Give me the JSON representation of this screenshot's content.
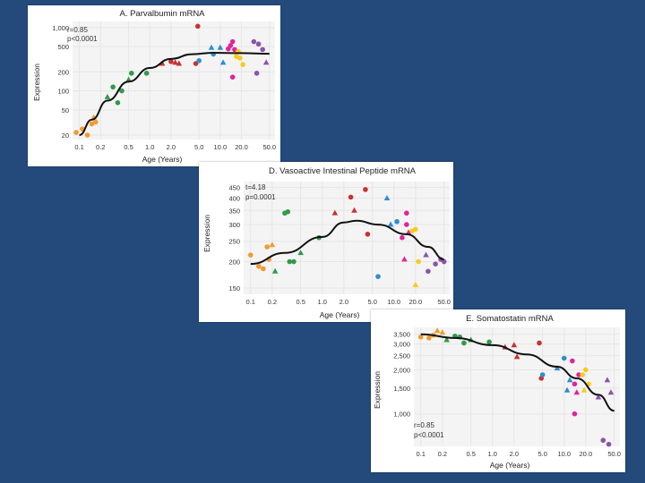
{
  "chart_data": [
    {
      "type": "scatter",
      "id": "a",
      "title": "A. Parvalbumin mRNA",
      "xlabel": "Age (Years)",
      "ylabel": "Expression",
      "stat_r": "r=0.85",
      "stat_p": "p<0.0001",
      "x_scale": "log",
      "y_scale": "log",
      "xlim": [
        0.08,
        60
      ],
      "ylim": [
        17,
        1250
      ],
      "x_ticks": [
        0.1,
        0.2,
        0.5,
        1.0,
        2.0,
        5.0,
        10.0,
        20.0,
        50.0
      ],
      "x_tick_labels": [
        "0.1",
        "0.2",
        "0.5",
        "1.0",
        "2.0",
        "5.0",
        "10.0",
        "20.0",
        "50.0"
      ],
      "y_ticks": [
        20,
        50,
        100,
        200,
        500,
        1000
      ],
      "y_tick_labels": [
        "20",
        "50",
        "100",
        "200",
        "500",
        "1,000"
      ],
      "grid": true,
      "fit_curve": [
        [
          0.1,
          20
        ],
        [
          0.15,
          35
        ],
        [
          0.25,
          70
        ],
        [
          0.5,
          140
        ],
        [
          1.0,
          230
        ],
        [
          2.0,
          320
        ],
        [
          4.0,
          380
        ],
        [
          8.0,
          400
        ],
        [
          20.0,
          395
        ],
        [
          50.0,
          385
        ]
      ],
      "points": [
        {
          "x": 0.09,
          "y": 22,
          "g": "orange",
          "m": "circle"
        },
        {
          "x": 0.11,
          "y": 25,
          "g": "orange",
          "m": "circle"
        },
        {
          "x": 0.13,
          "y": 20,
          "g": "orange",
          "m": "circle"
        },
        {
          "x": 0.15,
          "y": 30,
          "g": "orange",
          "m": "circle"
        },
        {
          "x": 0.16,
          "y": 38,
          "g": "orange",
          "m": "triangle"
        },
        {
          "x": 0.17,
          "y": 32,
          "g": "orange",
          "m": "circle"
        },
        {
          "x": 0.25,
          "y": 80,
          "g": "green",
          "m": "triangle"
        },
        {
          "x": 0.3,
          "y": 115,
          "g": "green",
          "m": "circle"
        },
        {
          "x": 0.35,
          "y": 65,
          "g": "green",
          "m": "circle"
        },
        {
          "x": 0.4,
          "y": 100,
          "g": "green",
          "m": "circle"
        },
        {
          "x": 0.5,
          "y": 150,
          "g": "green",
          "m": "triangle"
        },
        {
          "x": 0.55,
          "y": 190,
          "g": "green",
          "m": "circle"
        },
        {
          "x": 0.9,
          "y": 190,
          "g": "green",
          "m": "circle"
        },
        {
          "x": 1.5,
          "y": 270,
          "g": "red",
          "m": "triangle"
        },
        {
          "x": 2.0,
          "y": 290,
          "g": "red",
          "m": "circle"
        },
        {
          "x": 2.3,
          "y": 280,
          "g": "red",
          "m": "triangle"
        },
        {
          "x": 2.6,
          "y": 270,
          "g": "red",
          "m": "triangle"
        },
        {
          "x": 4.5,
          "y": 270,
          "g": "red",
          "m": "circle"
        },
        {
          "x": 4.8,
          "y": 1050,
          "g": "red",
          "m": "circle"
        },
        {
          "x": 5.0,
          "y": 300,
          "g": "blue",
          "m": "circle"
        },
        {
          "x": 7.5,
          "y": 480,
          "g": "blue",
          "m": "triangle"
        },
        {
          "x": 8.0,
          "y": 380,
          "g": "blue",
          "m": "circle"
        },
        {
          "x": 10.0,
          "y": 480,
          "g": "blue",
          "m": "triangle"
        },
        {
          "x": 11.0,
          "y": 280,
          "g": "blue",
          "m": "triangle"
        },
        {
          "x": 13.0,
          "y": 460,
          "g": "magenta",
          "m": "circle"
        },
        {
          "x": 14.0,
          "y": 520,
          "g": "magenta",
          "m": "circle"
        },
        {
          "x": 15.0,
          "y": 600,
          "g": "magenta",
          "m": "circle"
        },
        {
          "x": 16.0,
          "y": 450,
          "g": "magenta",
          "m": "circle"
        },
        {
          "x": 15.0,
          "y": 165,
          "g": "magenta",
          "m": "circle"
        },
        {
          "x": 17.0,
          "y": 350,
          "g": "yellow",
          "m": "circle"
        },
        {
          "x": 19.0,
          "y": 330,
          "g": "yellow",
          "m": "circle"
        },
        {
          "x": 21.0,
          "y": 260,
          "g": "yellow",
          "m": "circle"
        },
        {
          "x": 18.0,
          "y": 420,
          "g": "yellow",
          "m": "circle"
        },
        {
          "x": 30.0,
          "y": 600,
          "g": "purple",
          "m": "circle"
        },
        {
          "x": 35.0,
          "y": 550,
          "g": "purple",
          "m": "circle"
        },
        {
          "x": 40.0,
          "y": 450,
          "g": "purple",
          "m": "circle"
        },
        {
          "x": 45.0,
          "y": 280,
          "g": "purple",
          "m": "triangle"
        },
        {
          "x": 33.0,
          "y": 190,
          "g": "purple",
          "m": "circle"
        }
      ]
    },
    {
      "type": "scatter",
      "id": "d",
      "title": "D. Vasoactive Intestinal Peptide mRNA",
      "xlabel": "Age (Years)",
      "ylabel": "Expression",
      "stat_r": "t=4.18",
      "stat_p": "p=0.0001",
      "x_scale": "log",
      "y_scale": "log",
      "xlim": [
        0.08,
        60
      ],
      "ylim": [
        140,
        480
      ],
      "x_ticks": [
        0.1,
        0.2,
        0.5,
        1.0,
        2.0,
        5.0,
        10.0,
        20.0,
        50.0
      ],
      "x_tick_labels": [
        "0.1",
        "0.2",
        "0.5",
        "1.0",
        "2.0",
        "5.0",
        "10.0",
        "20.0",
        "50.0"
      ],
      "y_ticks": [
        150,
        200,
        250,
        300,
        350,
        400,
        450
      ],
      "y_tick_labels": [
        "150",
        "200",
        "250",
        "300",
        "350",
        "400",
        "450"
      ],
      "grid": true,
      "fit_curve": [
        [
          0.1,
          195
        ],
        [
          0.3,
          220
        ],
        [
          1.0,
          262
        ],
        [
          2.0,
          307
        ],
        [
          3.0,
          313
        ],
        [
          6.0,
          300
        ],
        [
          15.0,
          270
        ],
        [
          30.0,
          235
        ],
        [
          50.0,
          205
        ]
      ],
      "points": [
        {
          "x": 0.1,
          "y": 215,
          "g": "orange",
          "m": "circle"
        },
        {
          "x": 0.13,
          "y": 190,
          "g": "orange",
          "m": "circle"
        },
        {
          "x": 0.15,
          "y": 185,
          "g": "orange",
          "m": "circle"
        },
        {
          "x": 0.17,
          "y": 235,
          "g": "orange",
          "m": "circle"
        },
        {
          "x": 0.2,
          "y": 240,
          "g": "orange",
          "m": "triangle"
        },
        {
          "x": 0.18,
          "y": 205,
          "g": "orange",
          "m": "circle"
        },
        {
          "x": 0.22,
          "y": 180,
          "g": "green",
          "m": "triangle"
        },
        {
          "x": 0.3,
          "y": 340,
          "g": "green",
          "m": "circle"
        },
        {
          "x": 0.33,
          "y": 345,
          "g": "green",
          "m": "circle"
        },
        {
          "x": 0.35,
          "y": 200,
          "g": "green",
          "m": "circle"
        },
        {
          "x": 0.4,
          "y": 200,
          "g": "green",
          "m": "circle"
        },
        {
          "x": 0.5,
          "y": 220,
          "g": "green",
          "m": "triangle"
        },
        {
          "x": 0.9,
          "y": 260,
          "g": "green",
          "m": "circle"
        },
        {
          "x": 1.5,
          "y": 340,
          "g": "red",
          "m": "triangle"
        },
        {
          "x": 2.5,
          "y": 405,
          "g": "red",
          "m": "circle"
        },
        {
          "x": 2.8,
          "y": 350,
          "g": "red",
          "m": "triangle"
        },
        {
          "x": 4.0,
          "y": 440,
          "g": "red",
          "m": "circle"
        },
        {
          "x": 4.3,
          "y": 270,
          "g": "red",
          "m": "circle"
        },
        {
          "x": 6.0,
          "y": 170,
          "g": "blue",
          "m": "circle"
        },
        {
          "x": 8.0,
          "y": 400,
          "g": "blue",
          "m": "triangle"
        },
        {
          "x": 9.0,
          "y": 300,
          "g": "blue",
          "m": "triangle"
        },
        {
          "x": 11.0,
          "y": 310,
          "g": "blue",
          "m": "circle"
        },
        {
          "x": 13.0,
          "y": 260,
          "g": "magenta",
          "m": "circle"
        },
        {
          "x": 15.0,
          "y": 340,
          "g": "magenta",
          "m": "circle"
        },
        {
          "x": 15.0,
          "y": 300,
          "g": "magenta",
          "m": "circle"
        },
        {
          "x": 14.0,
          "y": 205,
          "g": "magenta",
          "m": "triangle"
        },
        {
          "x": 16.0,
          "y": 275,
          "g": "magenta",
          "m": "triangle"
        },
        {
          "x": 18.0,
          "y": 280,
          "g": "yellow",
          "m": "circle"
        },
        {
          "x": 20.0,
          "y": 285,
          "g": "yellow",
          "m": "circle"
        },
        {
          "x": 22.0,
          "y": 200,
          "g": "yellow",
          "m": "circle"
        },
        {
          "x": 20.0,
          "y": 155,
          "g": "yellow",
          "m": "triangle"
        },
        {
          "x": 28.0,
          "y": 215,
          "g": "purple",
          "m": "triangle"
        },
        {
          "x": 38.0,
          "y": 195,
          "g": "purple",
          "m": "circle"
        },
        {
          "x": 45.0,
          "y": 205,
          "g": "purple",
          "m": "circle"
        },
        {
          "x": 50.0,
          "y": 200,
          "g": "purple",
          "m": "circle"
        },
        {
          "x": 30.0,
          "y": 180,
          "g": "purple",
          "m": "circle"
        }
      ]
    },
    {
      "type": "scatter",
      "id": "e",
      "title": "E. Somatostatin mRNA",
      "xlabel": "Age (Years)",
      "ylabel": "Expression",
      "stat_r": "r=0.85",
      "stat_p": "p<0.0001",
      "x_scale": "log",
      "y_scale": "log",
      "xlim": [
        0.08,
        60
      ],
      "ylim": [
        600,
        3900
      ],
      "x_ticks": [
        0.1,
        0.2,
        0.5,
        1.0,
        2.0,
        5.0,
        10.0,
        20.0,
        50.0
      ],
      "x_tick_labels": [
        "0.1",
        "0.2",
        "0.5",
        "1.0",
        "2.0",
        "5.0",
        "10.0",
        "20.0",
        "50.0"
      ],
      "y_ticks": [
        1000,
        1500,
        2000,
        2500,
        3000,
        3500
      ],
      "y_tick_labels": [
        "1,000",
        "1,500",
        "2,000",
        "2,500",
        "3,000",
        "3,500"
      ],
      "grid": true,
      "fit_curve": [
        [
          0.1,
          3500
        ],
        [
          0.3,
          3300
        ],
        [
          1.0,
          2950
        ],
        [
          3.0,
          2550
        ],
        [
          8.0,
          2100
        ],
        [
          15.0,
          1750
        ],
        [
          30.0,
          1350
        ],
        [
          50.0,
          1050
        ]
      ],
      "points": [
        {
          "x": 0.1,
          "y": 3350,
          "g": "orange",
          "m": "circle"
        },
        {
          "x": 0.13,
          "y": 3300,
          "g": "orange",
          "m": "circle"
        },
        {
          "x": 0.15,
          "y": 3450,
          "g": "orange",
          "m": "circle"
        },
        {
          "x": 0.17,
          "y": 3700,
          "g": "orange",
          "m": "triangle"
        },
        {
          "x": 0.2,
          "y": 3600,
          "g": "orange",
          "m": "triangle"
        },
        {
          "x": 0.23,
          "y": 3200,
          "g": "green",
          "m": "triangle"
        },
        {
          "x": 0.3,
          "y": 3400,
          "g": "green",
          "m": "circle"
        },
        {
          "x": 0.35,
          "y": 3350,
          "g": "green",
          "m": "circle"
        },
        {
          "x": 0.4,
          "y": 3050,
          "g": "green",
          "m": "circle"
        },
        {
          "x": 0.5,
          "y": 3200,
          "g": "green",
          "m": "triangle"
        },
        {
          "x": 0.9,
          "y": 3100,
          "g": "green",
          "m": "circle"
        },
        {
          "x": 1.5,
          "y": 2850,
          "g": "red",
          "m": "triangle"
        },
        {
          "x": 2.0,
          "y": 2950,
          "g": "red",
          "m": "triangle"
        },
        {
          "x": 2.2,
          "y": 2450,
          "g": "red",
          "m": "triangle"
        },
        {
          "x": 4.5,
          "y": 3050,
          "g": "red",
          "m": "circle"
        },
        {
          "x": 4.8,
          "y": 1750,
          "g": "red",
          "m": "circle"
        },
        {
          "x": 5.0,
          "y": 1850,
          "g": "blue",
          "m": "circle"
        },
        {
          "x": 8.0,
          "y": 2050,
          "g": "blue",
          "m": "triangle"
        },
        {
          "x": 10.0,
          "y": 2400,
          "g": "blue",
          "m": "circle"
        },
        {
          "x": 11.0,
          "y": 1450,
          "g": "blue",
          "m": "triangle"
        },
        {
          "x": 12.0,
          "y": 1700,
          "g": "blue",
          "m": "triangle"
        },
        {
          "x": 13.0,
          "y": 2300,
          "g": "magenta",
          "m": "circle"
        },
        {
          "x": 14.0,
          "y": 1600,
          "g": "magenta",
          "m": "circle"
        },
        {
          "x": 15.0,
          "y": 1400,
          "g": "magenta",
          "m": "triangle"
        },
        {
          "x": 14.0,
          "y": 1000,
          "g": "magenta",
          "m": "circle"
        },
        {
          "x": 16.0,
          "y": 1850,
          "g": "magenta",
          "m": "circle"
        },
        {
          "x": 18.0,
          "y": 1850,
          "g": "yellow",
          "m": "circle"
        },
        {
          "x": 20.0,
          "y": 2000,
          "g": "yellow",
          "m": "circle"
        },
        {
          "x": 22.0,
          "y": 1600,
          "g": "yellow",
          "m": "circle"
        },
        {
          "x": 19.0,
          "y": 1450,
          "g": "yellow",
          "m": "triangle"
        },
        {
          "x": 30.0,
          "y": 1300,
          "g": "purple",
          "m": "triangle"
        },
        {
          "x": 40.0,
          "y": 1700,
          "g": "purple",
          "m": "triangle"
        },
        {
          "x": 45.0,
          "y": 1400,
          "g": "purple",
          "m": "triangle"
        },
        {
          "x": 35.0,
          "y": 660,
          "g": "purple",
          "m": "circle"
        },
        {
          "x": 42.0,
          "y": 620,
          "g": "purple",
          "m": "circle"
        }
      ]
    }
  ],
  "colors": {
    "background": "#244a7c",
    "grid": "#e6e6e6",
    "plot_bg": "#f4f4f4",
    "orange": "#f29a2e",
    "green": "#2e9b4a",
    "red": "#c8322f",
    "blue": "#2b8fd0",
    "magenta": "#e0249a",
    "yellow": "#f3cd1c",
    "purple": "#8b54a8",
    "curve": "#111111"
  }
}
